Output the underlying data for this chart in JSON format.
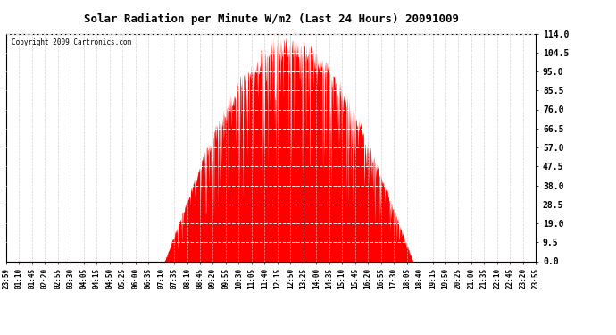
{
  "title": "Solar Radiation per Minute W/m2 (Last 24 Hours) 20091009",
  "copyright": "Copyright 2009 Cartronics.com",
  "bar_color": "#FF0000",
  "background_color": "#FFFFFF",
  "grid_color": "#C8C8C8",
  "yticks": [
    0.0,
    9.5,
    19.0,
    28.5,
    38.0,
    47.5,
    57.0,
    66.5,
    76.0,
    85.5,
    95.0,
    104.5,
    114.0
  ],
  "ymin": 0.0,
  "ymax": 114.0,
  "xtick_labels": [
    "23:59",
    "01:10",
    "01:45",
    "02:20",
    "02:55",
    "03:30",
    "04:05",
    "04:15",
    "04:50",
    "05:25",
    "06:00",
    "06:35",
    "07:10",
    "07:35",
    "08:10",
    "08:45",
    "09:20",
    "09:55",
    "10:30",
    "11:05",
    "11:40",
    "12:15",
    "12:50",
    "13:25",
    "14:00",
    "14:35",
    "15:10",
    "15:45",
    "16:20",
    "16:55",
    "17:30",
    "18:05",
    "18:40",
    "19:15",
    "19:50",
    "20:25",
    "21:00",
    "21:35",
    "22:10",
    "22:45",
    "23:20",
    "23:55"
  ],
  "sunrise_minute": 430,
  "sunset_minute": 1105,
  "peak_minute": 800,
  "peak_val": 114.0,
  "n_points": 1440,
  "seed": 12345
}
